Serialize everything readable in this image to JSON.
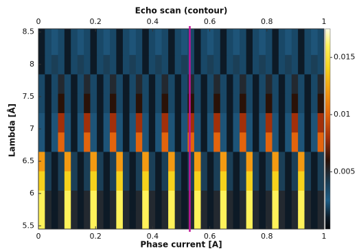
{
  "chart_data": {
    "type": "heatmap",
    "title": "Echo scan (contour)",
    "x_label": "Phase current [A]",
    "y_label": "Lambda [Å]",
    "xlim": [
      0,
      1
    ],
    "xticks": [
      0,
      0.2,
      0.4,
      0.6,
      0.8,
      1
    ],
    "ylim": [
      5.45,
      8.55
    ],
    "yticks": [
      5.5,
      6,
      6.5,
      7,
      7.5,
      8,
      8.5
    ],
    "clim": [
      0,
      0.0175
    ],
    "cticks": [
      0.005,
      0.01,
      0.015
    ],
    "colormap": [
      {
        "value": 0,
        "color": "#05080c"
      },
      {
        "value": 0.001,
        "color": "#0d1a26"
      },
      {
        "value": 0.0025,
        "color": "#1f5f88"
      },
      {
        "value": 0.004,
        "color": "#1b3f57"
      },
      {
        "value": 0.006,
        "color": "#2a1208"
      },
      {
        "value": 0.008,
        "color": "#a2300a"
      },
      {
        "value": 0.01,
        "color": "#e3640d"
      },
      {
        "value": 0.012,
        "color": "#f39a12"
      },
      {
        "value": 0.014,
        "color": "#f6d21c"
      },
      {
        "value": 0.016,
        "color": "#fff25a"
      },
      {
        "value": 0.0175,
        "color": "#ffffe8"
      }
    ],
    "marker_x": 0.53,
    "marker_color": "#c0159a",
    "x": [
      0.011,
      0.034,
      0.057,
      0.08,
      0.102,
      0.125,
      0.148,
      0.17,
      0.193,
      0.216,
      0.239,
      0.261,
      0.284,
      0.307,
      0.33,
      0.352,
      0.375,
      0.398,
      0.42,
      0.443,
      0.466,
      0.489,
      0.511,
      0.534,
      0.557,
      0.58,
      0.602,
      0.625,
      0.648,
      0.67,
      0.693,
      0.716,
      0.739,
      0.761,
      0.784,
      0.807,
      0.83,
      0.852,
      0.875,
      0.898,
      0.92,
      0.943,
      0.966,
      0.989
    ],
    "y": [
      5.6,
      5.9,
      6.2,
      6.5,
      6.8,
      7.1,
      7.4,
      7.7,
      8.0,
      8.3
    ],
    "z": [
      [
        0.016,
        0.005,
        0.001,
        0.005,
        0.016,
        0.005,
        0.001,
        0.005,
        0.016,
        0.005,
        0.001,
        0.005,
        0.016,
        0.005,
        0.001,
        0.005,
        0.016,
        0.005,
        0.001,
        0.005,
        0.016,
        0.005,
        0.001,
        0.005,
        0.016,
        0.005,
        0.001,
        0.005,
        0.016,
        0.005,
        0.001,
        0.005,
        0.016,
        0.005,
        0.001,
        0.005,
        0.016,
        0.005,
        0.001,
        0.005,
        0.016,
        0.005,
        0.001,
        0.005
      ],
      [
        0.016,
        0.005,
        0.001,
        0.005,
        0.016,
        0.005,
        0.001,
        0.005,
        0.016,
        0.005,
        0.001,
        0.005,
        0.016,
        0.005,
        0.001,
        0.005,
        0.016,
        0.005,
        0.001,
        0.005,
        0.016,
        0.005,
        0.001,
        0.005,
        0.016,
        0.005,
        0.001,
        0.005,
        0.016,
        0.005,
        0.001,
        0.005,
        0.016,
        0.005,
        0.001,
        0.005,
        0.016,
        0.005,
        0.001,
        0.005,
        0.016,
        0.005,
        0.001,
        0.005
      ],
      [
        0.014,
        0.004,
        0.001,
        0.004,
        0.014,
        0.004,
        0.001,
        0.004,
        0.014,
        0.004,
        0.001,
        0.004,
        0.014,
        0.004,
        0.001,
        0.004,
        0.014,
        0.004,
        0.001,
        0.004,
        0.014,
        0.004,
        0.001,
        0.004,
        0.014,
        0.004,
        0.001,
        0.004,
        0.014,
        0.004,
        0.001,
        0.004,
        0.014,
        0.004,
        0.001,
        0.004,
        0.014,
        0.004,
        0.001,
        0.004,
        0.014,
        0.004,
        0.001,
        0.004
      ],
      [
        0.012,
        0.004,
        0.001,
        0.004,
        0.012,
        0.004,
        0.001,
        0.004,
        0.012,
        0.004,
        0.001,
        0.004,
        0.012,
        0.004,
        0.001,
        0.004,
        0.012,
        0.004,
        0.001,
        0.004,
        0.012,
        0.004,
        0.001,
        0.004,
        0.012,
        0.004,
        0.001,
        0.004,
        0.012,
        0.004,
        0.001,
        0.004,
        0.012,
        0.004,
        0.001,
        0.004,
        0.012,
        0.004,
        0.001,
        0.004,
        0.012,
        0.004,
        0.001,
        0.004
      ],
      [
        0.003,
        0.001,
        0.003,
        0.01,
        0.003,
        0.001,
        0.003,
        0.01,
        0.003,
        0.001,
        0.003,
        0.01,
        0.003,
        0.001,
        0.003,
        0.01,
        0.003,
        0.001,
        0.003,
        0.01,
        0.003,
        0.001,
        0.003,
        0.01,
        0.003,
        0.001,
        0.003,
        0.01,
        0.003,
        0.001,
        0.003,
        0.01,
        0.003,
        0.001,
        0.003,
        0.01,
        0.003,
        0.001,
        0.003,
        0.01,
        0.003,
        0.001,
        0.003,
        0.01
      ],
      [
        0.003,
        0.001,
        0.003,
        0.008,
        0.003,
        0.001,
        0.003,
        0.008,
        0.003,
        0.001,
        0.003,
        0.008,
        0.003,
        0.001,
        0.003,
        0.008,
        0.003,
        0.001,
        0.003,
        0.008,
        0.003,
        0.001,
        0.003,
        0.008,
        0.003,
        0.001,
        0.003,
        0.008,
        0.003,
        0.001,
        0.003,
        0.008,
        0.003,
        0.001,
        0.003,
        0.008,
        0.003,
        0.001,
        0.003,
        0.008,
        0.003,
        0.001,
        0.003,
        0.008
      ],
      [
        0.002,
        0.001,
        0.002,
        0.006,
        0.002,
        0.001,
        0.002,
        0.006,
        0.002,
        0.001,
        0.002,
        0.006,
        0.002,
        0.001,
        0.002,
        0.006,
        0.002,
        0.001,
        0.002,
        0.006,
        0.002,
        0.001,
        0.002,
        0.006,
        0.002,
        0.001,
        0.002,
        0.006,
        0.002,
        0.001,
        0.002,
        0.006,
        0.002,
        0.001,
        0.002,
        0.006,
        0.002,
        0.001,
        0.002,
        0.006,
        0.002,
        0.001,
        0.002,
        0.006
      ],
      [
        0.002,
        0.001,
        0.002,
        0.005,
        0.002,
        0.001,
        0.002,
        0.005,
        0.002,
        0.001,
        0.002,
        0.005,
        0.002,
        0.001,
        0.002,
        0.005,
        0.002,
        0.001,
        0.002,
        0.005,
        0.002,
        0.001,
        0.002,
        0.005,
        0.002,
        0.001,
        0.002,
        0.005,
        0.002,
        0.001,
        0.002,
        0.005,
        0.002,
        0.001,
        0.002,
        0.005,
        0.002,
        0.001,
        0.002,
        0.005,
        0.002,
        0.001,
        0.002,
        0.005
      ],
      [
        0.001,
        0.002,
        0.004,
        0.002,
        0.001,
        0.002,
        0.004,
        0.002,
        0.001,
        0.002,
        0.004,
        0.002,
        0.001,
        0.002,
        0.004,
        0.002,
        0.001,
        0.002,
        0.004,
        0.002,
        0.001,
        0.002,
        0.004,
        0.002,
        0.001,
        0.002,
        0.004,
        0.002,
        0.001,
        0.002,
        0.004,
        0.002,
        0.001,
        0.002,
        0.004,
        0.002,
        0.001,
        0.002,
        0.004,
        0.002,
        0.001,
        0.002,
        0.004,
        0.002
      ],
      [
        0.001,
        0.002,
        0.003,
        0.002,
        0.001,
        0.002,
        0.003,
        0.002,
        0.001,
        0.002,
        0.003,
        0.002,
        0.001,
        0.002,
        0.003,
        0.002,
        0.001,
        0.002,
        0.003,
        0.002,
        0.001,
        0.002,
        0.003,
        0.002,
        0.001,
        0.002,
        0.003,
        0.002,
        0.001,
        0.002,
        0.003,
        0.002,
        0.001,
        0.002,
        0.003,
        0.002,
        0.001,
        0.002,
        0.003,
        0.002,
        0.001,
        0.002,
        0.003,
        0.002
      ]
    ]
  }
}
